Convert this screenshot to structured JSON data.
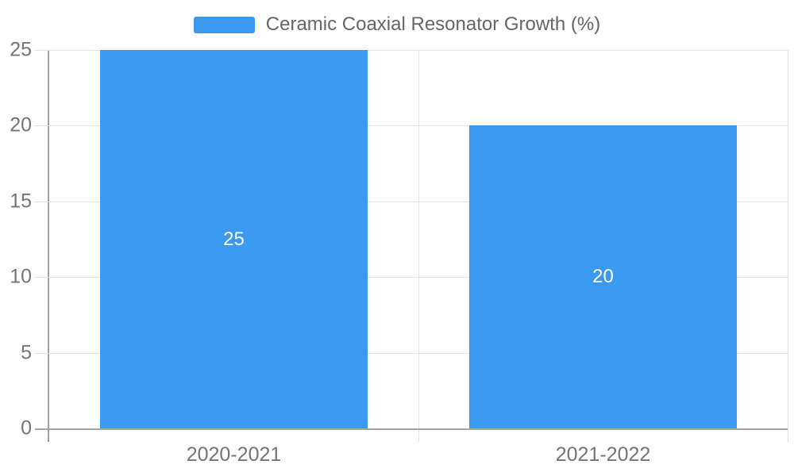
{
  "chart_data": {
    "type": "bar",
    "title": "",
    "legend_label": "Ceramic Coaxial Resonator Growth (%)",
    "legend_position": "top",
    "categories": [
      "2020-2021",
      "2021-2022"
    ],
    "series": [
      {
        "name": "Ceramic Coaxial Resonator Growth (%)",
        "values": [
          25,
          20
        ],
        "data_labels": [
          "25",
          "20"
        ]
      }
    ],
    "xlabel": "",
    "ylabel": "",
    "ylim": [
      0,
      25
    ],
    "yticks": [
      0,
      5,
      10,
      15,
      20,
      25
    ],
    "grid": true
  },
  "colors": {
    "bar": "#3b99ef",
    "gridline": "#e4e4e4",
    "axis_line": "#9e9e9e",
    "axis_label": "#757575",
    "legend_text": "#666666",
    "bar_label_text": "#ffffff",
    "background": "#ffffff"
  }
}
